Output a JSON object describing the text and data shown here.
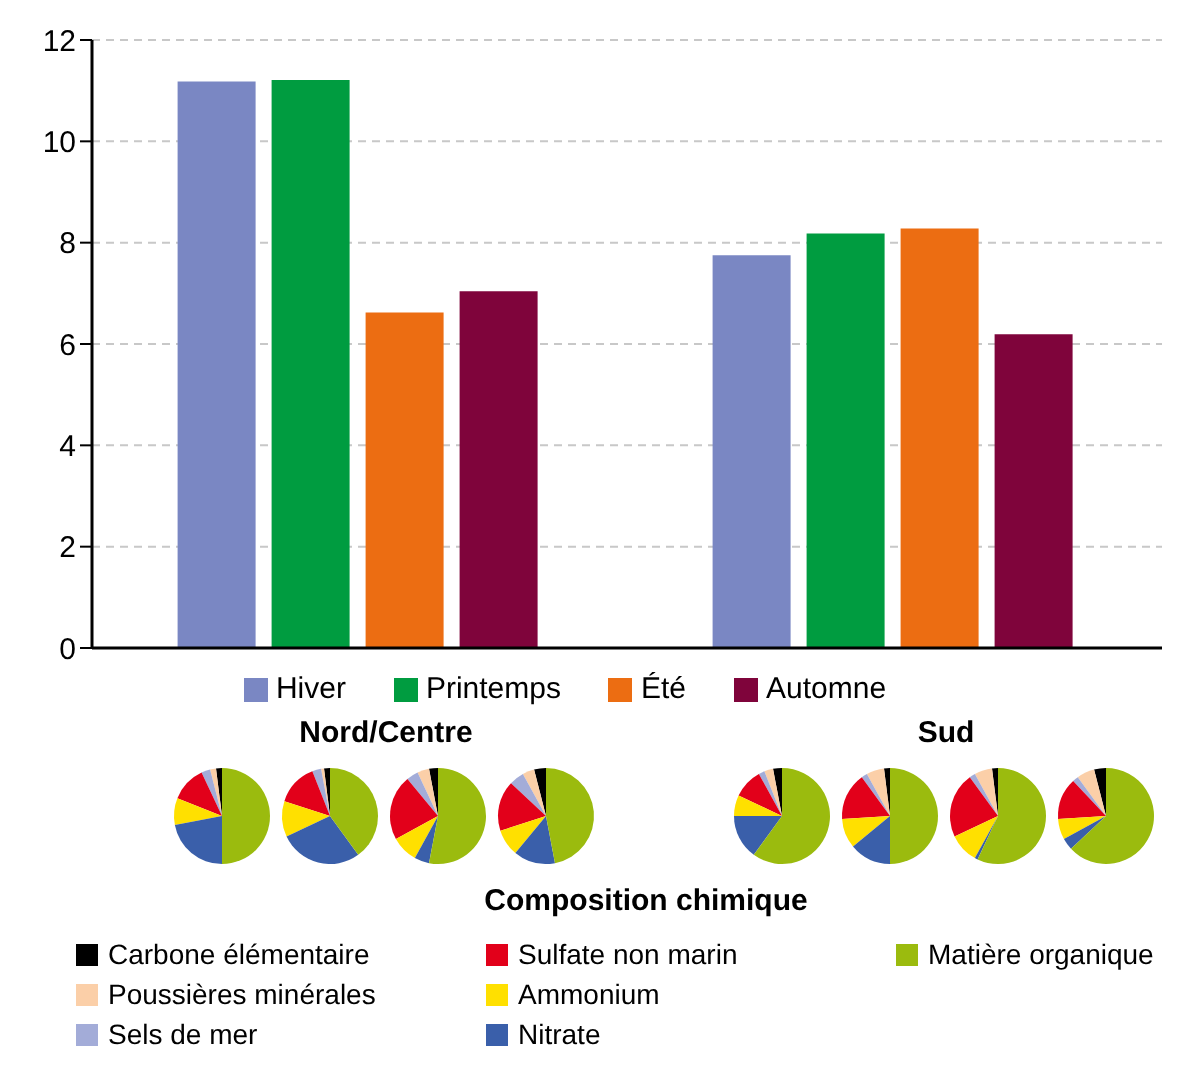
{
  "chart_data": [
    {
      "type": "bar",
      "categories": [
        null,
        null
      ],
      "series": [
        {
          "name": "Hiver",
          "color": "#7a87c3",
          "values": [
            11.18,
            7.75
          ]
        },
        {
          "name": "Printemps",
          "color": "#009c40",
          "values": [
            11.21,
            8.18
          ]
        },
        {
          "name": "Été",
          "color": "#ec6d12",
          "values": [
            6.62,
            8.28
          ]
        },
        {
          "name": "Automne",
          "color": "#7f043b",
          "values": [
            7.04,
            6.19
          ]
        }
      ],
      "ylim": [
        0,
        12
      ],
      "yticks": [
        0,
        2,
        4,
        6,
        8,
        10,
        12
      ],
      "grid": "y",
      "legend": "bottom",
      "tick_labels": "y"
    },
    {
      "type": "pie",
      "title": "Nord/Centre",
      "legend_title": "Composition chimique",
      "legend": "bottom",
      "categories": [
        "Carbone élémentaire",
        "Poussières minérales",
        "Sels de mer",
        "Sulfate non marin",
        "Ammonium",
        "Nitrate",
        "Matière organique"
      ],
      "colors": [
        "#000000",
        "#fbcfa8",
        "#a3acd8",
        "#e2001a",
        "#ffe000",
        "#3a5faa",
        "#9bbb0e"
      ],
      "values": [
        2,
        2,
        3,
        12,
        9,
        22,
        50
      ]
    },
    {
      "type": "pie",
      "categories": [
        null,
        null,
        null,
        null,
        null,
        null,
        null
      ],
      "colors": [
        "#000000",
        "#fbcfa8",
        "#a3acd8",
        "#e2001a",
        "#ffe000",
        "#3a5faa",
        "#9bbb0e"
      ],
      "values": [
        2,
        1,
        3,
        14,
        12,
        28,
        40
      ]
    },
    {
      "type": "pie",
      "categories": [
        null,
        null,
        null,
        null,
        null,
        null,
        null
      ],
      "colors": [
        "#000000",
        "#fbcfa8",
        "#a3acd8",
        "#e2001a",
        "#ffe000",
        "#3a5faa",
        "#9bbb0e"
      ],
      "values": [
        3,
        4,
        4,
        22,
        9,
        5,
        53
      ]
    },
    {
      "type": "pie",
      "categories": [
        null,
        null,
        null,
        null,
        null,
        null,
        null
      ],
      "colors": [
        "#000000",
        "#fbcfa8",
        "#a3acd8",
        "#e2001a",
        "#ffe000",
        "#3a5faa",
        "#9bbb0e"
      ],
      "values": [
        4,
        4,
        5,
        17,
        9,
        14,
        47
      ]
    },
    {
      "type": "pie",
      "title": "Sud",
      "categories": [
        null,
        null,
        null,
        null,
        null,
        null,
        null
      ],
      "colors": [
        "#000000",
        "#fbcfa8",
        "#a3acd8",
        "#e2001a",
        "#ffe000",
        "#3a5faa",
        "#9bbb0e"
      ],
      "values": [
        3,
        3,
        2,
        10,
        7,
        15,
        60
      ]
    },
    {
      "type": "pie",
      "categories": [
        null,
        null,
        null,
        null,
        null,
        null,
        null
      ],
      "colors": [
        "#000000",
        "#fbcfa8",
        "#a3acd8",
        "#e2001a",
        "#ffe000",
        "#3a5faa",
        "#9bbb0e"
      ],
      "values": [
        2,
        6,
        2,
        16,
        10,
        14,
        50
      ]
    },
    {
      "type": "pie",
      "categories": [
        null,
        null,
        null,
        null,
        null,
        null,
        null
      ],
      "colors": [
        "#000000",
        "#fbcfa8",
        "#a3acd8",
        "#e2001a",
        "#ffe000",
        "#3a5faa",
        "#9bbb0e"
      ],
      "values": [
        2,
        6,
        2,
        22,
        10,
        1,
        57
      ]
    },
    {
      "type": "pie",
      "categories": [
        null,
        null,
        null,
        null,
        null,
        null,
        null
      ],
      "colors": [
        "#000000",
        "#fbcfa8",
        "#a3acd8",
        "#e2001a",
        "#ffe000",
        "#3a5faa",
        "#9bbb0e"
      ],
      "values": [
        4,
        6,
        2,
        14,
        7,
        4,
        63
      ]
    }
  ]
}
